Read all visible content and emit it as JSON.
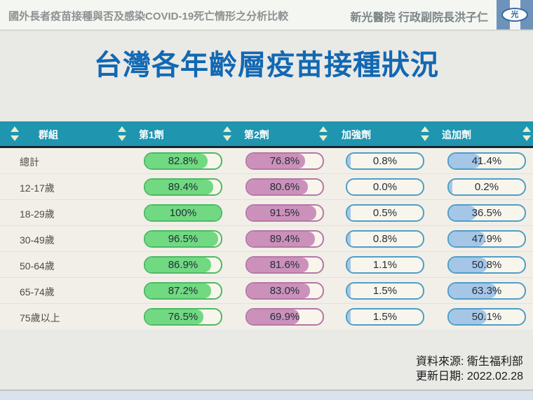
{
  "top_bar": {
    "left_title": "國外長者疫苗接種與否及感染COVID-19死亡情形之分析比較",
    "right_title": "新光醫院 行政副院長洪子仁",
    "logo_text": "光"
  },
  "slide": {
    "title": "台灣各年齡層疫苗接種狀況"
  },
  "table": {
    "columns": [
      "群組",
      "第1劑",
      "第2劑",
      "加強劑",
      "追加劑"
    ],
    "rows": [
      {
        "group": "總計",
        "dose1": "82.8%",
        "dose2": "76.8%",
        "booster": "0.8%",
        "extra": "41.4%"
      },
      {
        "group": "12-17歲",
        "dose1": "89.4%",
        "dose2": "80.6%",
        "booster": "0.0%",
        "extra": "0.2%"
      },
      {
        "group": "18-29歲",
        "dose1": "100%",
        "dose2": "91.5%",
        "booster": "0.5%",
        "extra": "36.5%"
      },
      {
        "group": "30-49歲",
        "dose1": "96.5%",
        "dose2": "89.4%",
        "booster": "0.8%",
        "extra": "47.9%"
      },
      {
        "group": "50-64歲",
        "dose1": "86.9%",
        "dose2": "81.6%",
        "booster": "1.1%",
        "extra": "50.8%"
      },
      {
        "group": "65-74歲",
        "dose1": "87.2%",
        "dose2": "83.0%",
        "booster": "1.5%",
        "extra": "63.3%"
      },
      {
        "group": "75歲以上",
        "dose1": "76.5%",
        "dose2": "69.9%",
        "booster": "1.5%",
        "extra": "50.1%"
      }
    ]
  },
  "footer": {
    "source_label": "資料來源: 衛生福利部",
    "update_label": "更新日期: 2022.02.28"
  },
  "icons": {
    "sort_icon": "up-down-triangles",
    "logo_icon": "ellipse-with-guang-character"
  },
  "colors": {
    "title_blue": "#1268b3",
    "header_teal": "#1f95af",
    "dose1_green": "#70d981",
    "dose2_pink": "#cb91bb",
    "booster_blue": "#a5c6e7",
    "bar_track_cream": "#f8f5ec",
    "row_background": "#f1efe8",
    "bottom_strip_blue": "#d9e2ed",
    "logo_stripe_blue": "#6e93ba"
  },
  "chart_data": {
    "type": "table",
    "title": "台灣各年齡層疫苗接種狀況",
    "categories": [
      "總計",
      "12-17歲",
      "18-29歲",
      "30-49歲",
      "50-64歲",
      "65-74歲",
      "75歲以上"
    ],
    "series": [
      {
        "name": "第1劑",
        "values": [
          82.8,
          89.4,
          100,
          96.5,
          86.9,
          87.2,
          76.5
        ]
      },
      {
        "name": "第2劑",
        "values": [
          76.8,
          80.6,
          91.5,
          89.4,
          81.6,
          83.0,
          69.9
        ]
      },
      {
        "name": "加強劑",
        "values": [
          0.8,
          0.0,
          0.5,
          0.8,
          1.1,
          1.5,
          1.5
        ]
      },
      {
        "name": "追加劑",
        "values": [
          41.4,
          0.2,
          36.5,
          47.9,
          50.8,
          63.3,
          50.1
        ]
      }
    ],
    "unit": "%",
    "value_range": [
      0,
      100
    ],
    "source": "資料來源: 衛生福利部",
    "updated": "更新日期: 2022.02.28"
  }
}
